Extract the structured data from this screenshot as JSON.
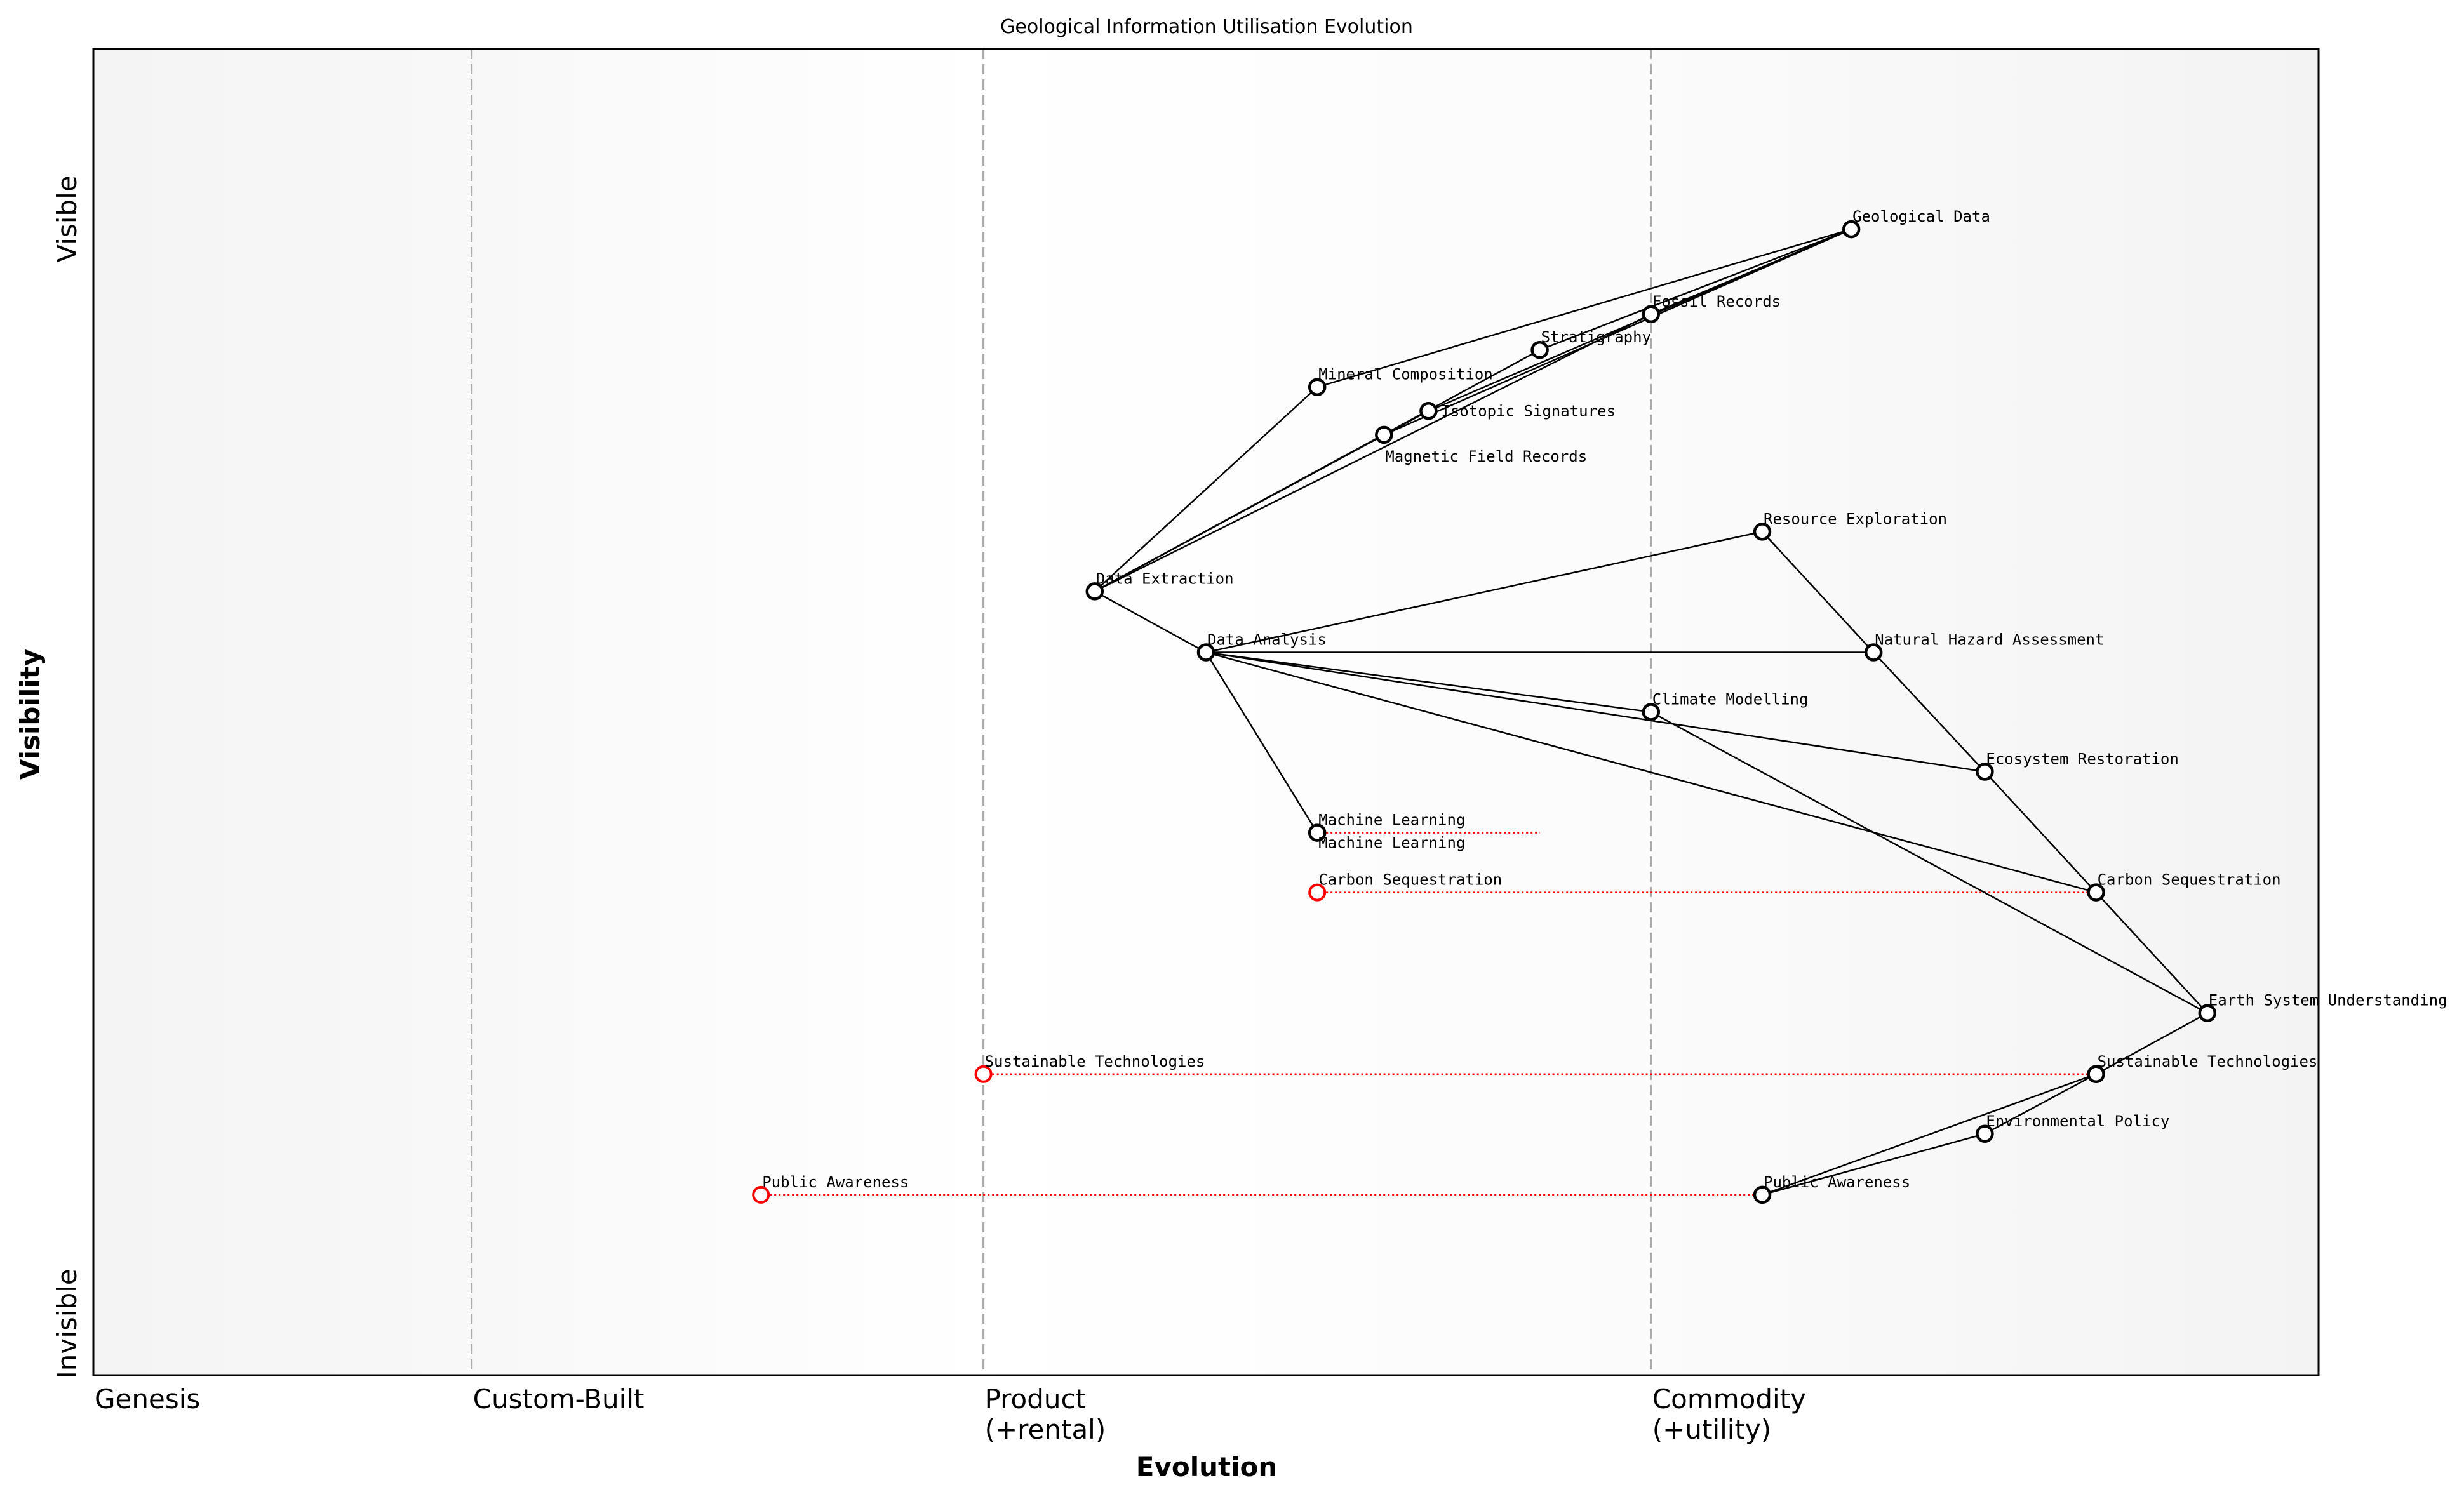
{
  "chart_data": {
    "type": "wardley-map",
    "title": "Geological Information Utilisation Evolution",
    "xlabel": "Evolution",
    "ylabel": "Visibility",
    "y_top_label": "Visible",
    "y_bottom_label": "Invisible",
    "xlim": [
      0,
      1
    ],
    "ylim": [
      0,
      1
    ],
    "stages": [
      {
        "label": "Genesis",
        "evolution": 0.0,
        "line": false
      },
      {
        "label": "Custom-Built",
        "evolution": 0.17,
        "line": true
      },
      {
        "label": "Product\n(+rental)",
        "evolution": 0.4,
        "line": true
      },
      {
        "label": "Commodity\n(+utility)",
        "evolution": 0.7,
        "line": true
      }
    ],
    "components": [
      {
        "name": "Geological Data",
        "evolution": 0.79,
        "visibility": 0.864
      },
      {
        "name": "Fossil Records",
        "evolution": 0.7,
        "visibility": 0.8
      },
      {
        "name": "Stratigraphy",
        "evolution": 0.65,
        "visibility": 0.773
      },
      {
        "name": "Mineral Composition",
        "evolution": 0.55,
        "visibility": 0.745
      },
      {
        "name": "Isotopic Signatures",
        "evolution": 0.6,
        "visibility": 0.727
      },
      {
        "name": "Magnetic Field Records",
        "evolution": 0.58,
        "visibility": 0.709
      },
      {
        "name": "Resource Exploration",
        "evolution": 0.75,
        "visibility": 0.636
      },
      {
        "name": "Data Extraction",
        "evolution": 0.45,
        "visibility": 0.591
      },
      {
        "name": "Data Analysis",
        "evolution": 0.5,
        "visibility": 0.545
      },
      {
        "name": "Natural Hazard Assessment",
        "evolution": 0.8,
        "visibility": 0.545
      },
      {
        "name": "Climate Modelling",
        "evolution": 0.7,
        "visibility": 0.5
      },
      {
        "name": "Ecosystem Restoration",
        "evolution": 0.85,
        "visibility": 0.455
      },
      {
        "name": "Machine Learning",
        "evolution": 0.55,
        "visibility": 0.409
      },
      {
        "name": "Carbon Sequestration",
        "evolution": 0.9,
        "visibility": 0.364
      },
      {
        "name": "Earth System Understanding",
        "evolution": 0.95,
        "visibility": 0.273
      },
      {
        "name": "Sustainable Technologies",
        "evolution": 0.9,
        "visibility": 0.227
      },
      {
        "name": "Environmental Policy",
        "evolution": 0.85,
        "visibility": 0.182
      },
      {
        "name": "Public Awareness",
        "evolution": 0.75,
        "visibility": 0.136
      }
    ],
    "links": [
      [
        "Geological Data",
        "Mineral Composition"
      ],
      [
        "Geological Data",
        "Fossil Records"
      ],
      [
        "Geological Data",
        "Stratigraphy"
      ],
      [
        "Geological Data",
        "Isotopic Signatures"
      ],
      [
        "Geological Data",
        "Magnetic Field Records"
      ],
      [
        "Data Extraction",
        "Mineral Composition"
      ],
      [
        "Data Extraction",
        "Stratigraphy"
      ],
      [
        "Data Extraction",
        "Isotopic Signatures"
      ],
      [
        "Data Extraction",
        "Magnetic Field Records"
      ],
      [
        "Data Extraction",
        "Fossil Records"
      ],
      [
        "Data Extraction",
        "Data Analysis"
      ],
      [
        "Data Analysis",
        "Resource Exploration"
      ],
      [
        "Data Analysis",
        "Natural Hazard Assessment"
      ],
      [
        "Data Analysis",
        "Climate Modelling"
      ],
      [
        "Data Analysis",
        "Ecosystem Restoration"
      ],
      [
        "Data Analysis",
        "Carbon Sequestration"
      ],
      [
        "Data Analysis",
        "Machine Learning"
      ],
      [
        "Resource Exploration",
        "Natural Hazard Assessment"
      ],
      [
        "Natural Hazard Assessment",
        "Ecosystem Restoration"
      ],
      [
        "Ecosystem Restoration",
        "Carbon Sequestration"
      ],
      [
        "Carbon Sequestration",
        "Earth System Understanding"
      ],
      [
        "Climate Modelling",
        "Earth System Understanding"
      ],
      [
        "Earth System Understanding",
        "Sustainable Technologies"
      ],
      [
        "Sustainable Technologies",
        "Environmental Policy"
      ],
      [
        "Sustainable Technologies",
        "Public Awareness"
      ],
      [
        "Environmental Policy",
        "Public Awareness"
      ]
    ],
    "evolutions": [
      {
        "name": "Machine Learning",
        "visibility": 0.409,
        "from": 0.55,
        "to": 0.65
      },
      {
        "name": "Carbon Sequestration",
        "visibility": 0.364,
        "from": 0.55,
        "to": 0.9
      },
      {
        "name": "Sustainable Technologies",
        "visibility": 0.227,
        "from": 0.4,
        "to": 0.9
      },
      {
        "name": "Public Awareness",
        "visibility": 0.136,
        "from": 0.3,
        "to": 0.75
      }
    ],
    "colors": {
      "component": "#000000",
      "evolve": "#ff0000",
      "stage_line": "#aaaaaa",
      "band_edge": "#f4f4f4",
      "band_mid": "#ffffff"
    },
    "grid": false
  }
}
